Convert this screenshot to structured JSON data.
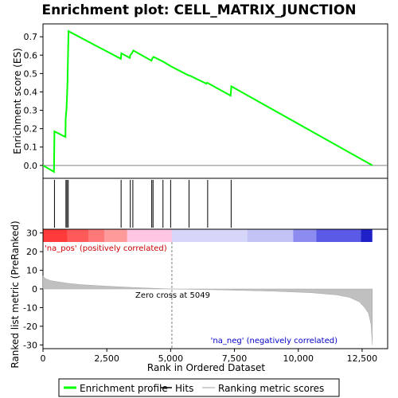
{
  "chart_data": {
    "type": "line",
    "title": "Enrichment plot: CELL_MATRIX_JUNCTION",
    "top_panel": {
      "ylabel": "Enrichment score (ES)",
      "ylim": [
        -0.07,
        0.77
      ],
      "yticks": [
        0.0,
        0.1,
        0.2,
        0.3,
        0.4,
        0.5,
        0.6,
        0.7
      ],
      "ytick_labels": [
        "0.0",
        "0.1",
        "0.2",
        "0.3",
        "0.4",
        "0.5",
        "0.6",
        "0.7"
      ],
      "series": [
        {
          "name": "Enrichment profile",
          "color": "#00ff00",
          "x": [
            0,
            430,
            450,
            880,
            890,
            920,
            940,
            960,
            980,
            1000,
            3050,
            3070,
            3400,
            3420,
            3480,
            3500,
            3540,
            4250,
            4270,
            4300,
            4320,
            4340,
            4700,
            5000,
            5700,
            5730,
            6400,
            6430,
            7350,
            7380,
            12900
          ],
          "y": [
            0.0,
            -0.035,
            0.185,
            0.155,
            0.255,
            0.305,
            0.36,
            0.45,
            0.59,
            0.73,
            0.58,
            0.61,
            0.585,
            0.6,
            0.61,
            0.615,
            0.625,
            0.57,
            0.58,
            0.585,
            0.59,
            0.59,
            0.565,
            0.54,
            0.49,
            0.49,
            0.445,
            0.45,
            0.38,
            0.43,
            0.0
          ]
        }
      ]
    },
    "hits": {
      "name": "Hits",
      "x": [
        450,
        900,
        940,
        990,
        3060,
        3420,
        3520,
        4260,
        4310,
        4700,
        5000,
        5720,
        6450,
        7370
      ]
    },
    "bottom_panel": {
      "ylabel": "Ranked list metric (PreRanked)",
      "xlabel": "Rank in Ordered Dataset",
      "xlim": [
        0,
        13500
      ],
      "xticks": [
        0,
        2500,
        5000,
        7500,
        10000,
        12500
      ],
      "xtick_labels": [
        "0",
        "2,500",
        "5,000",
        "7,500",
        "10,000",
        "12,500"
      ],
      "ylim": [
        -32,
        32
      ],
      "yticks": [
        -30,
        -20,
        -10,
        0,
        10,
        20,
        30
      ],
      "ytick_labels": [
        "-30",
        "-20",
        "-10",
        "0",
        "10",
        "20",
        "30"
      ],
      "series": [
        {
          "name": "Ranking metric scores",
          "color": "#c0c0c0",
          "x": [
            0,
            100,
            300,
            600,
            1000,
            1500,
            2500,
            3500,
            5049,
            7000,
            9000,
            10500,
            11500,
            12000,
            12400,
            12600,
            12750,
            12850,
            12900
          ],
          "y": [
            7.0,
            5.5,
            4.5,
            3.8,
            3.0,
            2.3,
            1.5,
            0.8,
            0.0,
            -0.5,
            -1.2,
            -2.0,
            -3.2,
            -4.5,
            -7.0,
            -10.0,
            -13.0,
            -19.0,
            -30.0
          ]
        }
      ],
      "zero_cross_x": 5049,
      "annotations": {
        "pos_label": "'na_pos' (positively correlated)",
        "neg_label": "'na_neg' (negatively correlated)",
        "zero_cross_label": "Zero cross at 5049"
      }
    },
    "color_bar": {
      "segments": [
        {
          "x0": 0,
          "x1": 950,
          "color": "#ff3a3a"
        },
        {
          "x0": 950,
          "x1": 1800,
          "color": "#ff5a5a"
        },
        {
          "x0": 1800,
          "x1": 2400,
          "color": "#ff7878"
        },
        {
          "x0": 2400,
          "x1": 3300,
          "color": "#ff9a9a"
        },
        {
          "x0": 3300,
          "x1": 5049,
          "color": "#ffc6e4"
        },
        {
          "x0": 5049,
          "x1": 8000,
          "color": "#d6d6f8"
        },
        {
          "x0": 8000,
          "x1": 9800,
          "color": "#c2c2f4"
        },
        {
          "x0": 9800,
          "x1": 10700,
          "color": "#8c8cf0"
        },
        {
          "x0": 10700,
          "x1": 12450,
          "color": "#5a5ae6"
        },
        {
          "x0": 12450,
          "x1": 12900,
          "color": "#2020c8"
        }
      ]
    },
    "legend": {
      "placement": "bottom",
      "entries": [
        {
          "label": "Enrichment profile",
          "color": "#00ff00"
        },
        {
          "label": "Hits",
          "color": "#000000"
        },
        {
          "label": "Ranking metric scores",
          "color": "#c0c0c0"
        }
      ]
    }
  }
}
